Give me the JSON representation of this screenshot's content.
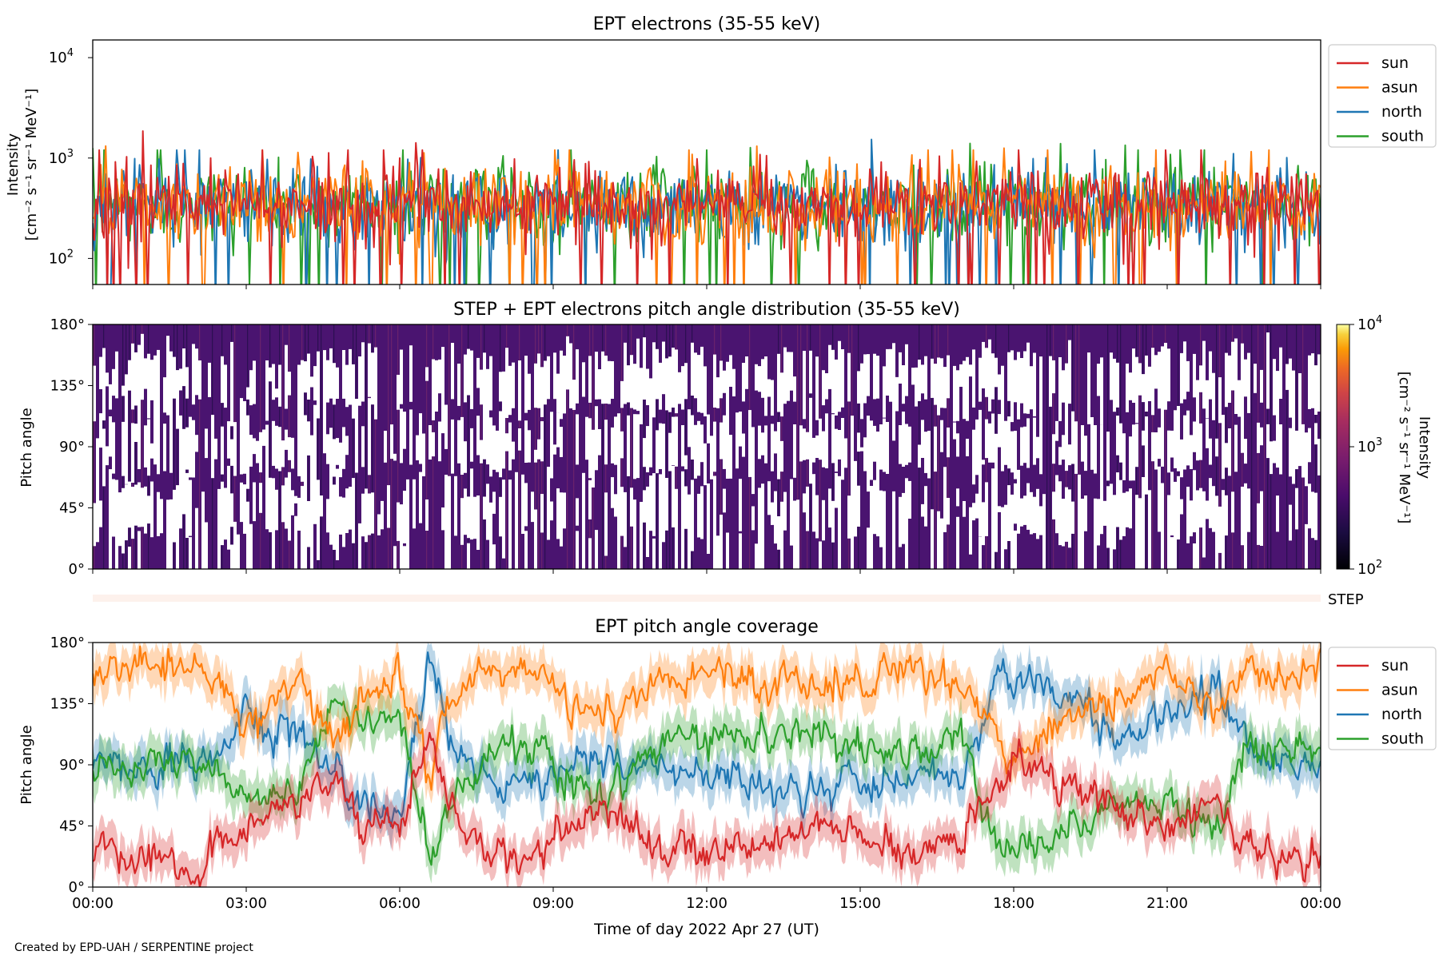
{
  "colors": {
    "sun": "#d62728",
    "asun": "#ff7f0e",
    "north": "#1f77b4",
    "south": "#2ca02c",
    "step_bar": "#fdf1ec"
  },
  "chart_data": [
    {
      "type": "line",
      "title": "EPT electrons (35-55 keV)",
      "ylabel_line1": "Intensity",
      "ylabel_line2": "[cm⁻² s⁻¹ sr⁻¹ MeV⁻¹]",
      "yscale": "log",
      "ylim": [
        55,
        15000
      ],
      "yticks": [
        {
          "value": 100,
          "base": "10",
          "exp": "2"
        },
        {
          "value": 1000,
          "base": "10",
          "exp": "3"
        },
        {
          "value": 10000,
          "base": "10",
          "exp": "4"
        }
      ],
      "xlim_hours": [
        0,
        24
      ],
      "legend": [
        "sun",
        "asun",
        "north",
        "south"
      ],
      "legend_position": "outside-top-right",
      "series_stats": {
        "typical_level": 350,
        "typical_range": [
          150,
          800
        ],
        "occasional_peaks": 1200,
        "occasional_dips": 55
      }
    },
    {
      "type": "heatmap",
      "title": "STEP + EPT electrons pitch angle distribution (35-55 keV)",
      "ylabel": "Pitch angle",
      "yticks": [
        "0°",
        "45°",
        "90°",
        "135°",
        "180°"
      ],
      "ylim": [
        0,
        180
      ],
      "xlim_hours": [
        0,
        24
      ],
      "colorbar": {
        "label_line1": "Intensity",
        "label_line2": "[cm⁻² s⁻¹ sr⁻¹ MeV⁻¹]",
        "scale": "log",
        "range": [
          100,
          10000
        ],
        "ticks": [
          {
            "value": 100,
            "base": "10",
            "exp": "2"
          },
          {
            "value": 1000,
            "base": "10",
            "exp": "3"
          },
          {
            "value": 10000,
            "base": "10",
            "exp": "4"
          }
        ],
        "colormap": "inferno"
      },
      "dominant_color": "#4a1470",
      "empty_bands_degrees": [
        [
          25,
          60
        ],
        [
          75,
          105
        ],
        [
          120,
          155
        ]
      ]
    },
    {
      "type": "bar",
      "label": "STEP",
      "note": "thin horizontal STEP coverage strip"
    },
    {
      "type": "line",
      "title": "EPT pitch angle coverage",
      "ylabel": "Pitch angle",
      "yticks": [
        "0°",
        "45°",
        "90°",
        "135°",
        "180°"
      ],
      "ylim": [
        0,
        180
      ],
      "xlabel": "Time of day 2022 Apr 27 (UT)",
      "xticks": [
        "00:00",
        "03:00",
        "06:00",
        "09:00",
        "12:00",
        "15:00",
        "18:00",
        "21:00",
        "00:00"
      ],
      "legend": [
        "sun",
        "asun",
        "north",
        "south"
      ],
      "legend_position": "outside-top-right",
      "shaded_band": "min-max pitch angle range around each series",
      "series_keyframes_hours_degrees": {
        "sun": [
          [
            0,
            25
          ],
          [
            2,
            20
          ],
          [
            3,
            45
          ],
          [
            4,
            60
          ],
          [
            4.7,
            80
          ],
          [
            5.2,
            55
          ],
          [
            6,
            40
          ],
          [
            6.6,
            110
          ],
          [
            7,
            55
          ],
          [
            8,
            25
          ],
          [
            9,
            30
          ],
          [
            10,
            60
          ],
          [
            11,
            30
          ],
          [
            12,
            25
          ],
          [
            14,
            40
          ],
          [
            15,
            35
          ],
          [
            16,
            25
          ],
          [
            17,
            40
          ],
          [
            17.7,
            80
          ],
          [
            18,
            100
          ],
          [
            19,
            80
          ],
          [
            20,
            65
          ],
          [
            21,
            40
          ],
          [
            22,
            60
          ],
          [
            22.6,
            30
          ],
          [
            24,
            20
          ]
        ],
        "asun": [
          [
            0,
            160
          ],
          [
            2,
            165
          ],
          [
            3,
            120
          ],
          [
            4,
            150
          ],
          [
            4.7,
            110
          ],
          [
            5.2,
            140
          ],
          [
            6,
            155
          ],
          [
            6.6,
            80
          ],
          [
            7,
            140
          ],
          [
            8,
            160
          ],
          [
            9,
            155
          ],
          [
            10,
            120
          ],
          [
            11,
            155
          ],
          [
            12,
            160
          ],
          [
            14,
            145
          ],
          [
            15,
            150
          ],
          [
            16,
            160
          ],
          [
            17,
            145
          ],
          [
            17.7,
            110
          ],
          [
            18,
            95
          ],
          [
            19,
            120
          ],
          [
            20,
            140
          ],
          [
            21,
            160
          ],
          [
            22,
            135
          ],
          [
            22.6,
            160
          ],
          [
            24,
            165
          ]
        ],
        "north": [
          [
            0,
            95
          ],
          [
            2,
            85
          ],
          [
            3,
            130
          ],
          [
            4,
            110
          ],
          [
            4.7,
            90
          ],
          [
            5.2,
            60
          ],
          [
            6,
            55
          ],
          [
            6.6,
            165
          ],
          [
            7,
            100
          ],
          [
            8,
            70
          ],
          [
            9,
            85
          ],
          [
            10,
            95
          ],
          [
            11,
            90
          ],
          [
            12,
            85
          ],
          [
            14,
            70
          ],
          [
            15,
            75
          ],
          [
            16,
            80
          ],
          [
            17,
            75
          ],
          [
            17.7,
            160
          ],
          [
            18,
            155
          ],
          [
            19,
            140
          ],
          [
            20,
            110
          ],
          [
            21,
            125
          ],
          [
            22,
            150
          ],
          [
            22.6,
            100
          ],
          [
            24,
            85
          ]
        ],
        "south": [
          [
            0,
            85
          ],
          [
            2,
            95
          ],
          [
            3,
            60
          ],
          [
            4,
            70
          ],
          [
            4.7,
            130
          ],
          [
            5.2,
            120
          ],
          [
            6,
            125
          ],
          [
            6.6,
            30
          ],
          [
            7,
            60
          ],
          [
            8,
            110
          ],
          [
            9,
            95
          ],
          [
            10,
            60
          ],
          [
            11,
            100
          ],
          [
            12,
            110
          ],
          [
            14,
            110
          ],
          [
            15,
            105
          ],
          [
            16,
            100
          ],
          [
            17,
            105
          ],
          [
            17.7,
            30
          ],
          [
            18,
            25
          ],
          [
            19,
            40
          ],
          [
            20,
            60
          ],
          [
            21,
            55
          ],
          [
            22,
            45
          ],
          [
            22.6,
            110
          ],
          [
            24,
            100
          ]
        ]
      }
    }
  ],
  "footer": {
    "credit": "Created by EPD-UAH / SERPENTINE project"
  }
}
